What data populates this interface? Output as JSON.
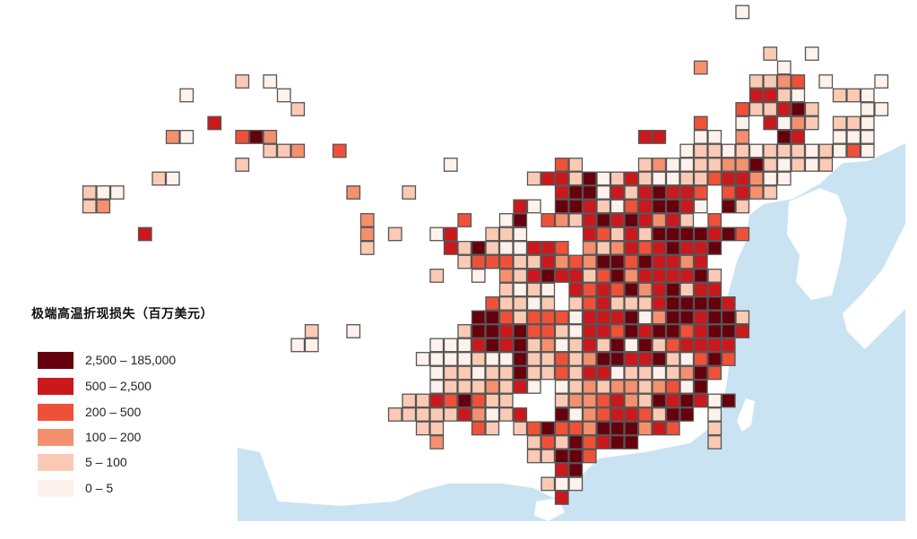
{
  "legend": {
    "title": "极端高温折现损失（百万美元）",
    "classes": [
      {
        "label": "2,500 – 185,000",
        "color": "#67000d"
      },
      {
        "label": "500 – 2,500",
        "color": "#cb181d"
      },
      {
        "label": "200 – 500",
        "color": "#ef5138"
      },
      {
        "label": "100 – 200",
        "color": "#f5906e"
      },
      {
        "label": "5 – 100",
        "color": "#fbcab5"
      },
      {
        "label": "0 – 5",
        "color": "#fff1ec"
      }
    ]
  },
  "colors": {
    "sea": "#c9e3f3",
    "land": "#ffffff",
    "cell_border": "#555555"
  },
  "grid_cells_note_format": "row strings: col:classes, class 0=0–5 … 5=2,500–185,000, '.'=no cell",
  "grid_cells": [
    "47:0",
    "",
    "",
    "49:1 52:0",
    "44:2 50:0",
    "11:1 13:0 48:1123 53:0 57:0",
    "7:0 14:0 48:4410 54:110",
    "15:1 47:311451 56:00",
    "9:4 44:3 47:0 49:4021 54:110",
    "6:20 11:352 40:44 44:00 47:2 50:54 54:000",
    "13:112 18:3 43:01101011101030",
    "11:1 26:0 34:31 40:12001122510101",
    "5:10 32:1441501410011344200",
    "0:100 19:2 23:1 34:45504145443.3421",
    "0:12 31:40.55410345540.51",
    "20:2 27:3 30:05.32145454241.3",
    "4:4 20:2 22:1 25:04..110 36:431415555453",
    "20:1 26:415100443.2124345445",
    "27:133311423255354424",
    "25:1 28:0.2145441352444451",
    "30:1010.43435245144",
    "29:31101.134111455554",
    "28:55313330444502554551",
    "16:1 19:0 27:155453310443545534554",
    "15:00 25:0004545120141505134444",
    "24:00001005113125544510353",
    "25:011011511314401101253",
    "25:01112140.01212212305",
    "23:11435311...1223421545405",
    "22:1111142014..5023443155.0",
    "24:11..31.135332555243..1",
    "25:2 32:13153455 45:1",
    "32:11553",
    "34:45",
    "33:100",
    "34:4"
  ]
}
